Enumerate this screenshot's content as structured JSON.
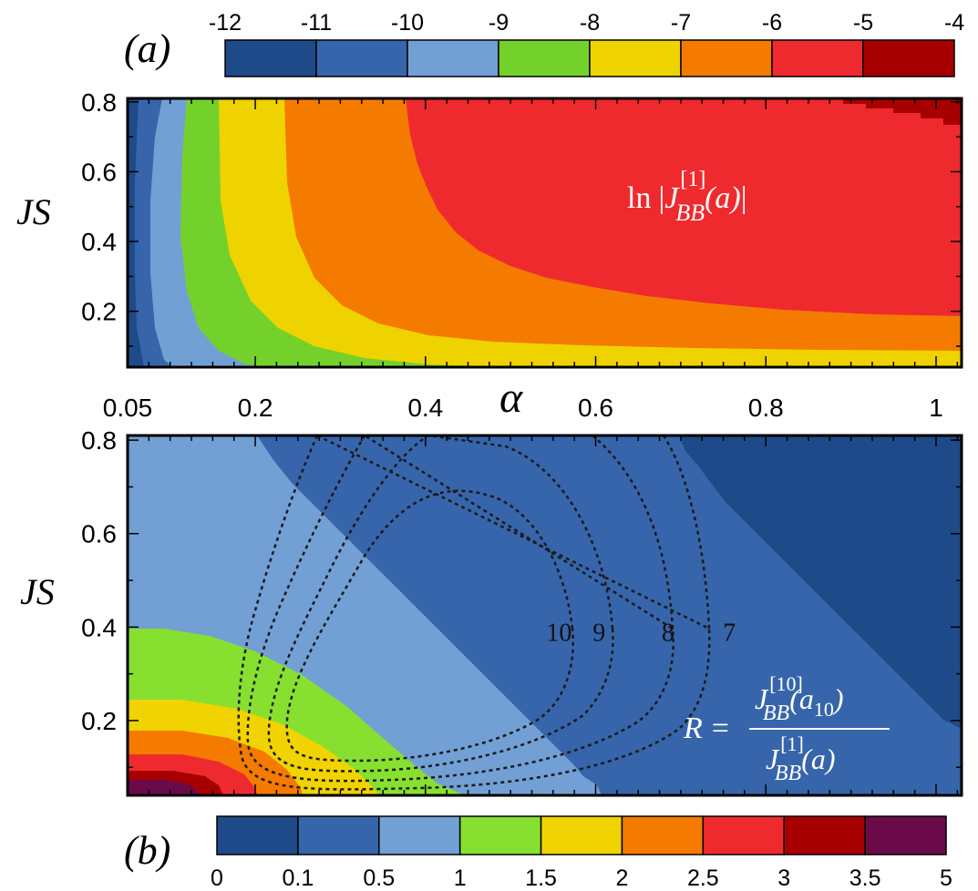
{
  "chart_data": [
    {
      "panel": "(a)",
      "type": "heatmap",
      "quantity_label": "ln |J_BB^[1](a)|",
      "label_parts": {
        "ln": "ln",
        "bars": "|",
        "J": "J",
        "sup": "[1]",
        "sub": "BB",
        "arg": "(a)"
      },
      "xlabel": "α",
      "ylabel": "JS",
      "x_ticks": [
        "0.05",
        "0.2",
        "0.4",
        "0.6",
        "0.8",
        "1"
      ],
      "x_tick_values": [
        0.05,
        0.2,
        0.4,
        0.6,
        0.8,
        1.0
      ],
      "y_ticks": [
        "0.2",
        "0.4",
        "0.6",
        "0.8"
      ],
      "y_tick_values": [
        0.2,
        0.4,
        0.6,
        0.8
      ],
      "xlim": [
        0.05,
        1.03
      ],
      "ylim": [
        0.04,
        0.81
      ],
      "colorbar": {
        "ticks": [
          "-12",
          "-11",
          "-10",
          "-9",
          "-8",
          "-7",
          "-6",
          "-5",
          "-4"
        ],
        "colors": [
          "#1f4a8a",
          "#3765ab",
          "#72a0d4",
          "#74d12c",
          "#efd300",
          "#f57a00",
          "#ef2a2e",
          "#a80000"
        ]
      },
      "regions": [
        {
          "level": "-12..-11",
          "color": "#1f4a8a",
          "boundary_x_top": 0.061,
          "boundary_x_bottom": 0.063
        },
        {
          "level": "-11..-10",
          "color": "#3765ab",
          "boundary_x_top": 0.09,
          "boundary_x_bottom": 0.09
        },
        {
          "level": "-10..-9",
          "color": "#72a0d4",
          "boundary_x_top": 0.118,
          "boundary_x_bottom": 0.12
        },
        {
          "level": "-9..-8",
          "color": "#74d12c",
          "boundary_x_top": 0.159,
          "boundary_x_bottom": 0.15
        },
        {
          "level": "-8..-7",
          "color": "#efd300",
          "boundary_x_top": 0.231,
          "boundary_x_bottom": 0.25
        },
        {
          "level": "-7..-6",
          "color": "#f57a00",
          "boundary_x_top": 0.366,
          "boundary_x_bottom": 0.45
        },
        {
          "level": "-6..-5",
          "color": "#ef2a2e"
        },
        {
          "level": "-5..-4",
          "color": "#a80000"
        }
      ]
    },
    {
      "panel": "(b)",
      "type": "heatmap",
      "quantity_label": "R = J_BB^[10](a_10) / J_BB^[1](a)",
      "label_parts": {
        "R": "R",
        "eq": "=",
        "num_J": "J",
        "num_sup": "[10]",
        "num_sub": "BB",
        "num_arg": "(a",
        "num_arg_sub": "10",
        "num_arg_close": ")",
        "den_J": "J",
        "den_sup": "[1]",
        "den_sub": "BB",
        "den_arg": "(a)"
      },
      "ylabel": "JS",
      "y_ticks": [
        "0.2",
        "0.4",
        "0.6",
        "0.8"
      ],
      "y_tick_values": [
        0.2,
        0.4,
        0.6,
        0.8
      ],
      "xlim": [
        0.05,
        1.03
      ],
      "ylim": [
        0.04,
        0.81
      ],
      "colorbar": {
        "ticks": [
          "0",
          "0.1",
          "0.5",
          "1",
          "1.5",
          "2",
          "2.5",
          "3",
          "3.5",
          "5"
        ],
        "colors": [
          "#1f4a8a",
          "#3765ab",
          "#72a0d4",
          "#87e030",
          "#f0d300",
          "#f57a00",
          "#ef2a2e",
          "#a80000",
          "#6b0a48"
        ]
      },
      "contours": [
        {
          "label": "10",
          "level": 10,
          "label_at": [
            0.557,
            0.39
          ]
        },
        {
          "label": "9",
          "level": 9,
          "label_at": [
            0.604,
            0.39
          ]
        },
        {
          "label": "8",
          "level": 8,
          "label_at": [
            0.685,
            0.39
          ]
        },
        {
          "label": "7",
          "level": 7,
          "label_at": [
            0.757,
            0.39
          ]
        }
      ],
      "diagonal_boundaries": [
        {
          "between": [
            "#72a0d4",
            "#3765ab"
          ],
          "from": [
            0.2,
            0.81
          ],
          "to": [
            0.577,
            0.04
          ]
        },
        {
          "between": [
            "#3765ab",
            "#1f4a8a"
          ],
          "from": [
            0.695,
            0.81
          ],
          "to": [
            1.03,
            0.196
          ]
        }
      ]
    }
  ]
}
